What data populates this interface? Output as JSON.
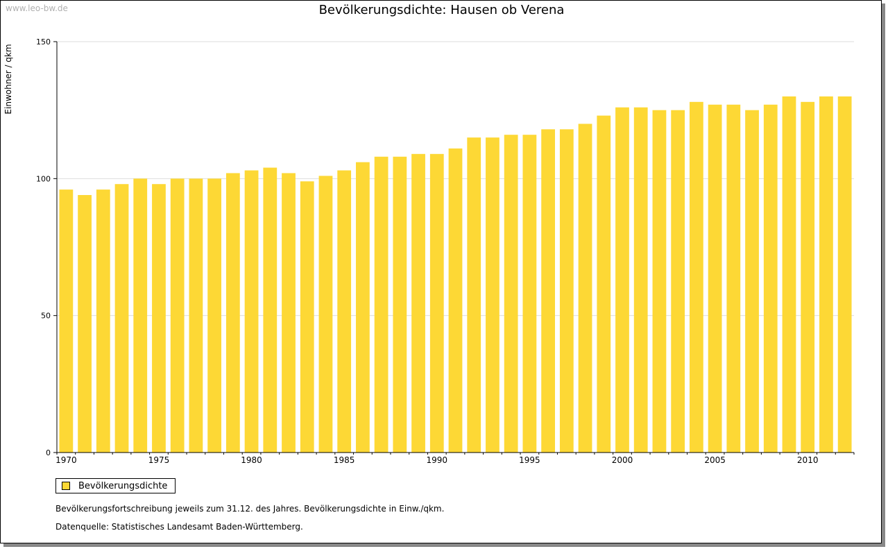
{
  "watermark": "www.leo-bw.de",
  "notes": {
    "line1": "Bevölkerungsfortschreibung jeweils zum 31.12. des Jahres. Bevölkerungsdichte in Einw./qkm.",
    "line2": "Datenquelle: Statistisches Landesamt Baden-Württemberg."
  },
  "colors": {
    "bar": "#fdd835",
    "grid": "#dddddd",
    "axis": "#000000"
  },
  "chart_data": {
    "type": "bar",
    "title": "Bevölkerungsdichte: Hausen ob Verena",
    "xlabel": "",
    "ylabel": "Einwohner / qkm",
    "ylim": [
      0,
      150
    ],
    "yticks": [
      0,
      50,
      100,
      150
    ],
    "xtick_labels": [
      "1970",
      "1975",
      "1980",
      "1985",
      "1990",
      "1995",
      "2000",
      "2005",
      "2010"
    ],
    "grid": true,
    "legend_position": "bottom-left",
    "categories": [
      1970,
      1971,
      1972,
      1973,
      1974,
      1975,
      1976,
      1977,
      1978,
      1979,
      1980,
      1981,
      1982,
      1983,
      1984,
      1985,
      1986,
      1987,
      1988,
      1989,
      1990,
      1991,
      1992,
      1993,
      1994,
      1995,
      1996,
      1997,
      1998,
      1999,
      2000,
      2001,
      2002,
      2003,
      2004,
      2005,
      2006,
      2007,
      2008,
      2009,
      2010,
      2011,
      2012
    ],
    "series": [
      {
        "name": "Bevölkerungsdichte",
        "values": [
          96,
          94,
          96,
          98,
          100,
          98,
          100,
          100,
          100,
          102,
          103,
          104,
          102,
          99,
          101,
          103,
          106,
          108,
          108,
          109,
          109,
          111,
          115,
          115,
          116,
          116,
          118,
          118,
          120,
          123,
          126,
          126,
          125,
          125,
          128,
          127,
          127,
          125,
          127,
          130,
          128,
          130,
          130
        ]
      }
    ]
  }
}
